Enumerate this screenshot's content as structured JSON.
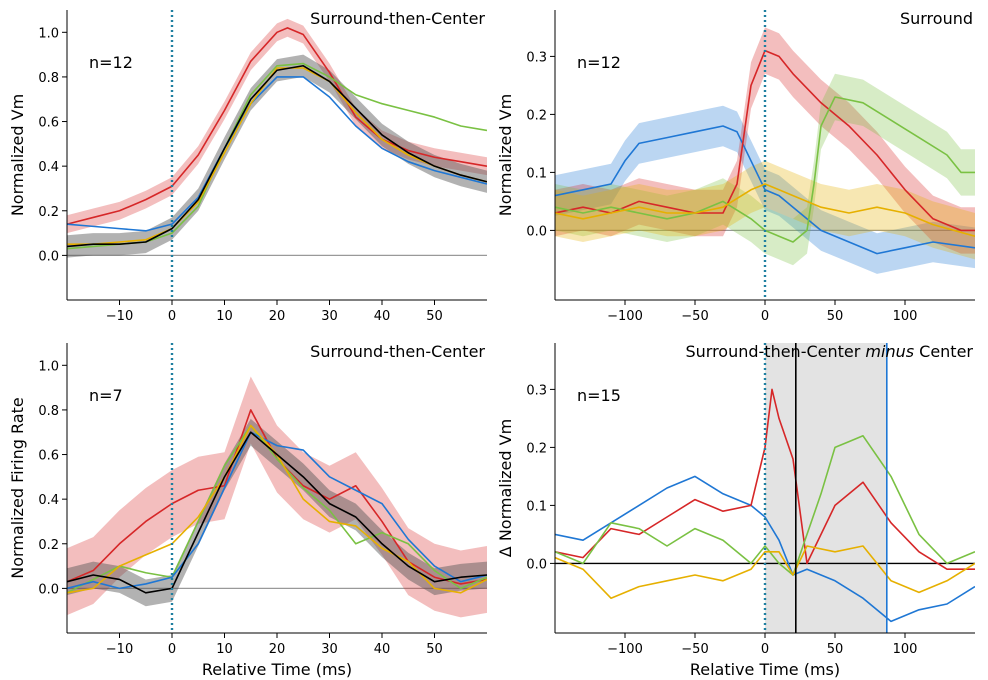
{
  "colors": {
    "red": "#d62728",
    "green": "#7ac143",
    "blue": "#1f77d4",
    "yellow": "#e6b000",
    "black": "#000000",
    "gray_band": "#555555",
    "dotted": "#1f7fa0",
    "zero_line": "#999999"
  },
  "chart_data": [
    {
      "id": "p1",
      "type": "line",
      "title": "Surround-then-Center",
      "n_label": "n=12",
      "xlabel": "",
      "ylabel": "Normalized Vm",
      "xlim": [
        -20,
        60
      ],
      "ylim": [
        -0.2,
        1.1
      ],
      "xticks": [
        -10,
        0,
        10,
        20,
        30,
        40,
        50
      ],
      "xtick_labels": [
        "−10",
        "0",
        "10",
        "20",
        "30",
        "40",
        "50"
      ],
      "yticks": [
        0.0,
        0.2,
        0.4,
        0.6,
        0.8,
        1.0
      ],
      "ytick_labels": [
        "0.0",
        "0.2",
        "0.4",
        "0.6",
        "0.8",
        "1.0"
      ],
      "zero_line": true,
      "vline_dotted": 0,
      "series": [
        {
          "color": "red",
          "band": 0.04,
          "x": [
            -20,
            -15,
            -10,
            -5,
            0,
            5,
            10,
            15,
            20,
            22,
            25,
            30,
            35,
            40,
            45,
            50,
            55,
            60
          ],
          "y": [
            0.14,
            0.17,
            0.2,
            0.25,
            0.31,
            0.45,
            0.65,
            0.87,
            1.0,
            1.02,
            0.99,
            0.82,
            0.62,
            0.52,
            0.47,
            0.44,
            0.42,
            0.4
          ]
        },
        {
          "color": "green",
          "band": 0,
          "x": [
            -20,
            -15,
            -10,
            -5,
            0,
            5,
            10,
            15,
            20,
            25,
            30,
            35,
            40,
            45,
            50,
            55,
            60
          ],
          "y": [
            0.03,
            0.04,
            0.05,
            0.06,
            0.1,
            0.22,
            0.48,
            0.72,
            0.85,
            0.86,
            0.8,
            0.72,
            0.68,
            0.65,
            0.62,
            0.58,
            0.56
          ]
        },
        {
          "color": "blue",
          "band": 0,
          "x": [
            -20,
            -15,
            -10,
            -5,
            0,
            5,
            10,
            15,
            20,
            25,
            30,
            35,
            40,
            45,
            50,
            55,
            60
          ],
          "y": [
            0.14,
            0.13,
            0.12,
            0.11,
            0.14,
            0.26,
            0.48,
            0.68,
            0.8,
            0.8,
            0.71,
            0.58,
            0.48,
            0.42,
            0.38,
            0.35,
            0.32
          ]
        },
        {
          "color": "yellow",
          "band": 0,
          "x": [
            -20,
            -15,
            -10,
            -5,
            0,
            5,
            10,
            15,
            20,
            25,
            30,
            35,
            40,
            45,
            50,
            55,
            60
          ],
          "y": [
            0.05,
            0.05,
            0.06,
            0.07,
            0.12,
            0.24,
            0.46,
            0.68,
            0.84,
            0.84,
            0.78,
            0.64,
            0.52,
            0.45,
            0.4,
            0.36,
            0.33
          ]
        },
        {
          "color": "black",
          "band": 0.05,
          "x": [
            -20,
            -15,
            -10,
            -5,
            0,
            5,
            10,
            15,
            20,
            25,
            30,
            35,
            40,
            45,
            50,
            55,
            60
          ],
          "y": [
            0.04,
            0.05,
            0.05,
            0.06,
            0.12,
            0.25,
            0.48,
            0.7,
            0.83,
            0.85,
            0.78,
            0.66,
            0.54,
            0.46,
            0.4,
            0.36,
            0.33
          ]
        }
      ]
    },
    {
      "id": "p2",
      "type": "line",
      "title": "Surround",
      "n_label": "n=12",
      "xlabel": "",
      "ylabel": "Normalized Vm",
      "xlim": [
        -150,
        150
      ],
      "ylim": [
        -0.12,
        0.38
      ],
      "xticks": [
        -100,
        -50,
        0,
        50,
        100
      ],
      "xtick_labels": [
        "−100",
        "−50",
        "0",
        "50",
        "100"
      ],
      "yticks": [
        0.0,
        0.1,
        0.2,
        0.3
      ],
      "ytick_labels": [
        "0.0",
        "0.1",
        "0.2",
        "0.3"
      ],
      "zero_line": true,
      "vline_dotted": 0,
      "series": [
        {
          "color": "blue",
          "band": 0.035,
          "x": [
            -150,
            -130,
            -110,
            -100,
            -90,
            -70,
            -50,
            -30,
            -20,
            -10,
            0,
            10,
            20,
            40,
            60,
            80,
            100,
            120,
            150
          ],
          "y": [
            0.06,
            0.07,
            0.08,
            0.12,
            0.15,
            0.16,
            0.17,
            0.18,
            0.17,
            0.12,
            0.07,
            0.06,
            0.04,
            0.0,
            -0.02,
            -0.04,
            -0.03,
            -0.02,
            -0.03
          ]
        },
        {
          "color": "red",
          "band": 0.04,
          "x": [
            -150,
            -130,
            -110,
            -90,
            -70,
            -50,
            -30,
            -20,
            -10,
            0,
            10,
            20,
            40,
            60,
            80,
            100,
            120,
            140,
            150
          ],
          "y": [
            0.03,
            0.04,
            0.03,
            0.05,
            0.04,
            0.03,
            0.03,
            0.08,
            0.25,
            0.31,
            0.3,
            0.27,
            0.22,
            0.18,
            0.13,
            0.07,
            0.02,
            0.0,
            0.0
          ]
        },
        {
          "color": "green",
          "band": 0.04,
          "x": [
            -150,
            -130,
            -110,
            -90,
            -70,
            -50,
            -30,
            -10,
            0,
            10,
            20,
            30,
            35,
            40,
            50,
            70,
            90,
            110,
            130,
            140,
            150
          ],
          "y": [
            0.04,
            0.03,
            0.04,
            0.03,
            0.02,
            0.03,
            0.05,
            0.02,
            0.0,
            -0.01,
            -0.02,
            0.0,
            0.08,
            0.18,
            0.23,
            0.22,
            0.19,
            0.16,
            0.13,
            0.1,
            0.1
          ]
        },
        {
          "color": "yellow",
          "band": 0.04,
          "x": [
            -150,
            -130,
            -110,
            -90,
            -70,
            -50,
            -30,
            -10,
            0,
            10,
            20,
            40,
            60,
            80,
            100,
            120,
            150
          ],
          "y": [
            0.03,
            0.02,
            0.03,
            0.04,
            0.03,
            0.03,
            0.04,
            0.07,
            0.08,
            0.07,
            0.06,
            0.04,
            0.03,
            0.04,
            0.03,
            0.01,
            -0.01
          ]
        }
      ]
    },
    {
      "id": "p3",
      "type": "line",
      "title": "Surround-then-Center",
      "n_label": "n=7",
      "xlabel": "Relative Time (ms)",
      "ylabel": "Normalized Firing Rate",
      "xlim": [
        -20,
        60
      ],
      "ylim": [
        -0.2,
        1.1
      ],
      "xticks": [
        -10,
        0,
        10,
        20,
        30,
        40,
        50
      ],
      "xtick_labels": [
        "−10",
        "0",
        "10",
        "20",
        "30",
        "40",
        "50"
      ],
      "yticks": [
        0.0,
        0.2,
        0.4,
        0.6,
        0.8,
        1.0
      ],
      "ytick_labels": [
        "0.0",
        "0.2",
        "0.4",
        "0.6",
        "0.8",
        "1.0"
      ],
      "zero_line": true,
      "vline_dotted": 0,
      "series": [
        {
          "color": "red",
          "band": 0.15,
          "x": [
            -20,
            -15,
            -10,
            -5,
            0,
            5,
            10,
            15,
            20,
            25,
            30,
            35,
            40,
            45,
            50,
            55,
            60
          ],
          "y": [
            0.03,
            0.08,
            0.2,
            0.3,
            0.38,
            0.44,
            0.46,
            0.8,
            0.58,
            0.46,
            0.4,
            0.46,
            0.3,
            0.12,
            0.05,
            0.02,
            0.04
          ]
        },
        {
          "color": "green",
          "band": 0,
          "x": [
            -20,
            -15,
            -10,
            -5,
            0,
            5,
            10,
            15,
            20,
            25,
            30,
            35,
            40,
            45,
            50,
            55,
            60
          ],
          "y": [
            -0.02,
            0.04,
            0.1,
            0.07,
            0.05,
            0.3,
            0.55,
            0.73,
            0.58,
            0.45,
            0.35,
            0.2,
            0.25,
            0.2,
            0.08,
            0.0,
            0.05
          ]
        },
        {
          "color": "blue",
          "band": 0,
          "x": [
            -20,
            -15,
            -10,
            -5,
            0,
            5,
            10,
            15,
            20,
            25,
            30,
            35,
            40,
            45,
            50,
            55,
            60
          ],
          "y": [
            0.0,
            0.03,
            0.0,
            0.02,
            0.05,
            0.2,
            0.45,
            0.7,
            0.64,
            0.62,
            0.5,
            0.44,
            0.38,
            0.22,
            0.1,
            0.03,
            0.06
          ]
        },
        {
          "color": "yellow",
          "band": 0,
          "x": [
            -20,
            -15,
            -10,
            -5,
            0,
            5,
            10,
            15,
            20,
            25,
            30,
            35,
            40,
            45,
            50,
            55,
            60
          ],
          "y": [
            -0.02,
            0.0,
            0.1,
            0.15,
            0.2,
            0.32,
            0.5,
            0.73,
            0.6,
            0.4,
            0.3,
            0.28,
            0.18,
            0.12,
            0.0,
            -0.02,
            0.04
          ]
        },
        {
          "color": "black",
          "band": 0.06,
          "x": [
            -20,
            -15,
            -10,
            -5,
            0,
            5,
            10,
            15,
            20,
            25,
            30,
            35,
            40,
            45,
            50,
            55,
            60
          ],
          "y": [
            0.03,
            0.06,
            0.04,
            -0.02,
            0.0,
            0.25,
            0.5,
            0.7,
            0.6,
            0.5,
            0.38,
            0.32,
            0.2,
            0.1,
            0.03,
            0.05,
            0.06
          ]
        }
      ]
    },
    {
      "id": "p4",
      "type": "line",
      "title": "Surround-then-Center ",
      "title_italic": "minus",
      "title_end": " Center",
      "n_label": "n=15",
      "xlabel": "Relative Time (ms)",
      "ylabel": "Δ Normalized Vm",
      "xlim": [
        -150,
        150
      ],
      "ylim": [
        -0.12,
        0.38
      ],
      "xticks": [
        -100,
        -50,
        0,
        50,
        100
      ],
      "xtick_labels": [
        "−100",
        "−50",
        "0",
        "50",
        "100"
      ],
      "yticks": [
        0.0,
        0.1,
        0.2,
        0.3
      ],
      "ytick_labels": [
        "0.0",
        "0.1",
        "0.2",
        "0.3"
      ],
      "zero_line": true,
      "zero_line_black": true,
      "vline_dotted": 0,
      "shade_range": [
        0,
        87
      ],
      "vline_black": 22,
      "vline_blue": 87,
      "series": [
        {
          "color": "blue",
          "band": 0,
          "x": [
            -150,
            -130,
            -110,
            -90,
            -70,
            -50,
            -30,
            -10,
            0,
            10,
            20,
            30,
            50,
            70,
            90,
            110,
            130,
            150
          ],
          "y": [
            0.05,
            0.04,
            0.07,
            0.1,
            0.13,
            0.15,
            0.12,
            0.1,
            0.08,
            0.04,
            -0.02,
            -0.01,
            -0.03,
            -0.06,
            -0.1,
            -0.08,
            -0.07,
            -0.04
          ]
        },
        {
          "color": "red",
          "band": 0,
          "x": [
            -150,
            -130,
            -110,
            -90,
            -70,
            -50,
            -30,
            -10,
            0,
            5,
            10,
            20,
            30,
            50,
            70,
            90,
            110,
            130,
            150
          ],
          "y": [
            0.02,
            0.01,
            0.06,
            0.05,
            0.08,
            0.11,
            0.09,
            0.1,
            0.2,
            0.3,
            0.25,
            0.18,
            0.0,
            0.1,
            0.14,
            0.07,
            0.02,
            -0.01,
            -0.01
          ]
        },
        {
          "color": "green",
          "band": 0,
          "x": [
            -150,
            -130,
            -110,
            -90,
            -70,
            -50,
            -30,
            -10,
            0,
            10,
            20,
            30,
            40,
            50,
            60,
            70,
            90,
            110,
            130,
            150
          ],
          "y": [
            0.02,
            0.0,
            0.07,
            0.06,
            0.03,
            0.06,
            0.04,
            0.0,
            0.03,
            0.0,
            -0.02,
            0.05,
            0.12,
            0.2,
            0.21,
            0.22,
            0.15,
            0.05,
            0.0,
            0.02
          ]
        },
        {
          "color": "yellow",
          "band": 0,
          "x": [
            -150,
            -130,
            -110,
            -90,
            -70,
            -50,
            -30,
            -10,
            0,
            10,
            20,
            30,
            50,
            70,
            90,
            110,
            130,
            150
          ],
          "y": [
            0.01,
            -0.01,
            -0.06,
            -0.04,
            -0.03,
            -0.02,
            -0.03,
            -0.01,
            0.02,
            0.02,
            -0.02,
            0.03,
            0.02,
            0.03,
            -0.03,
            -0.05,
            -0.03,
            0.0
          ]
        }
      ]
    }
  ]
}
